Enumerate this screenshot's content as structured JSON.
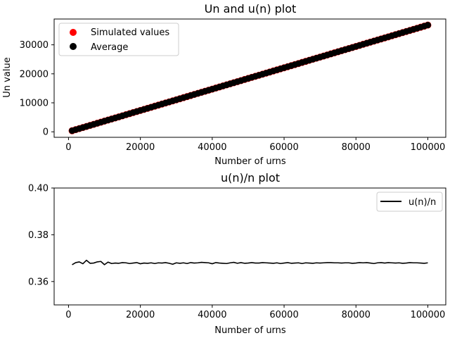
{
  "chart_data": [
    {
      "type": "scatter",
      "title": "Un and u(n) plot",
      "xlabel": "Number of urns",
      "ylabel": "Un value",
      "xlim": [
        -4000,
        105000
      ],
      "ylim": [
        -1900,
        38900
      ],
      "xticks": [
        0,
        20000,
        40000,
        60000,
        80000,
        100000
      ],
      "yticks": [
        0,
        10000,
        20000,
        30000
      ],
      "legend_position": "upper-left",
      "series": [
        {
          "name": "Simulated values",
          "color": "#ff0000",
          "x_range": [
            1000,
            100000
          ],
          "y_range": [
            368,
            36800
          ],
          "x_step": 1000,
          "slope": 0.368
        },
        {
          "name": "Average",
          "color": "#000000",
          "x_range": [
            1000,
            100000
          ],
          "y_range": [
            368,
            36800
          ],
          "x_step": 1000,
          "slope": 0.368
        }
      ]
    },
    {
      "type": "line",
      "title": "u(n)/n plot",
      "xlabel": "Number of urns",
      "ylabel": "",
      "xlim": [
        -4000,
        105000
      ],
      "ylim": [
        0.35,
        0.4
      ],
      "xticks": [
        0,
        20000,
        40000,
        60000,
        80000,
        100000
      ],
      "yticks": [
        0.36,
        0.38,
        0.4
      ],
      "legend_position": "upper-right",
      "series": [
        {
          "name": "u(n)/n",
          "color": "#000000",
          "x": [
            1000,
            2000,
            3000,
            4000,
            5000,
            6000,
            7000,
            8000,
            9000,
            10000,
            11000,
            12000,
            13000,
            14000,
            15000,
            16000,
            17000,
            18000,
            19000,
            20000,
            21000,
            22000,
            23000,
            24000,
            25000,
            26000,
            27000,
            28000,
            29000,
            30000,
            31000,
            32000,
            33000,
            34000,
            35000,
            36000,
            37000,
            38000,
            39000,
            40000,
            41000,
            42000,
            43000,
            44000,
            45000,
            46000,
            47000,
            48000,
            49000,
            50000,
            51000,
            52000,
            53000,
            54000,
            55000,
            56000,
            57000,
            58000,
            59000,
            60000,
            61000,
            62000,
            63000,
            64000,
            65000,
            66000,
            67000,
            68000,
            69000,
            70000,
            71000,
            72000,
            73000,
            74000,
            75000,
            76000,
            77000,
            78000,
            79000,
            80000,
            81000,
            82000,
            83000,
            84000,
            85000,
            86000,
            87000,
            88000,
            89000,
            90000,
            91000,
            92000,
            93000,
            94000,
            95000,
            96000,
            97000,
            98000,
            99000,
            100000
          ],
          "y": [
            0.3672,
            0.3681,
            0.3684,
            0.3676,
            0.3691,
            0.3678,
            0.3679,
            0.3684,
            0.3686,
            0.3672,
            0.3683,
            0.3677,
            0.3679,
            0.3678,
            0.3681,
            0.368,
            0.3677,
            0.3679,
            0.3681,
            0.3676,
            0.3679,
            0.3678,
            0.368,
            0.3677,
            0.368,
            0.3679,
            0.3681,
            0.3678,
            0.3674,
            0.368,
            0.3678,
            0.368,
            0.3677,
            0.3681,
            0.3679,
            0.368,
            0.3682,
            0.3681,
            0.368,
            0.3676,
            0.3681,
            0.3679,
            0.3678,
            0.3677,
            0.368,
            0.3682,
            0.3678,
            0.3681,
            0.3678,
            0.3679,
            0.3681,
            0.3679,
            0.3679,
            0.3681,
            0.368,
            0.3679,
            0.3678,
            0.368,
            0.3677,
            0.3679,
            0.3681,
            0.3678,
            0.3679,
            0.368,
            0.3677,
            0.368,
            0.3679,
            0.3678,
            0.368,
            0.3679,
            0.368,
            0.3681,
            0.3681,
            0.368,
            0.368,
            0.3679,
            0.368,
            0.368,
            0.3678,
            0.3679,
            0.3681,
            0.368,
            0.3681,
            0.3679,
            0.3677,
            0.368,
            0.3681,
            0.3679,
            0.3681,
            0.368,
            0.3679,
            0.368,
            0.3678,
            0.3679,
            0.3681,
            0.368,
            0.368,
            0.3679,
            0.3678,
            0.368
          ]
        }
      ]
    }
  ]
}
